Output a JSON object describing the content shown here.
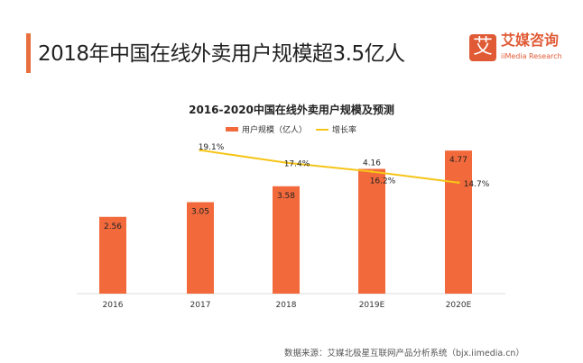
{
  "header": {
    "title": "2018年中国在线外卖用户规模超3.5亿人",
    "accent_color": "#e8703f"
  },
  "logo": {
    "mark": "艾",
    "name_cn": "艾媒咨询",
    "name_en": "iiMedia Research"
  },
  "chart_data": {
    "type": "bar",
    "title": "2016-2020中国在线外卖用户规模及预测",
    "categories": [
      "2016",
      "2017",
      "2018",
      "2019E",
      "2020E"
    ],
    "series": [
      {
        "name": "用户规模（亿人）",
        "type": "bar",
        "color": "#f26a3c",
        "values": [
          2.56,
          3.05,
          3.58,
          4.16,
          4.77
        ],
        "labels": [
          "2.56",
          "3.05",
          "3.58",
          "4.16",
          "4.77"
        ]
      },
      {
        "name": "增长率",
        "type": "line",
        "color": "#f5c518",
        "values": [
          null,
          19.1,
          17.4,
          16.2,
          14.7
        ],
        "labels": [
          "",
          "19.1%",
          "17.4%",
          "16.2%",
          "14.7%"
        ]
      }
    ],
    "legend_position": "top-center",
    "grid": false
  },
  "source": "数据来源：艾媒北极星互联网产品分析系统（bjx.iimedia.cn）"
}
